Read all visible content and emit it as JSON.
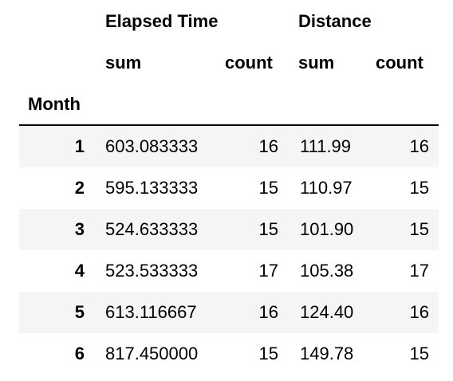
{
  "table": {
    "header": {
      "group1": "Elapsed Time",
      "group2": "Distance",
      "sub_sum_1": "sum",
      "sub_count_1": "count",
      "sub_sum_2": "sum",
      "sub_count_2": "count",
      "index_name": "Month"
    },
    "rows": [
      {
        "month": "1",
        "et_sum": "603.083333",
        "et_count": "16",
        "d_sum": "111.99",
        "d_count": "16"
      },
      {
        "month": "2",
        "et_sum": "595.133333",
        "et_count": "15",
        "d_sum": "110.97",
        "d_count": "15"
      },
      {
        "month": "3",
        "et_sum": "524.633333",
        "et_count": "15",
        "d_sum": "101.90",
        "d_count": "15"
      },
      {
        "month": "4",
        "et_sum": "523.533333",
        "et_count": "17",
        "d_sum": "105.38",
        "d_count": "17"
      },
      {
        "month": "5",
        "et_sum": "613.116667",
        "et_count": "16",
        "d_sum": "124.40",
        "d_count": "16"
      },
      {
        "month": "6",
        "et_sum": "817.450000",
        "et_count": "15",
        "d_sum": "149.78",
        "d_count": "15"
      }
    ],
    "colors": {
      "shade": "#f5f5f5",
      "text": "#000000",
      "rule": "#000000"
    }
  }
}
